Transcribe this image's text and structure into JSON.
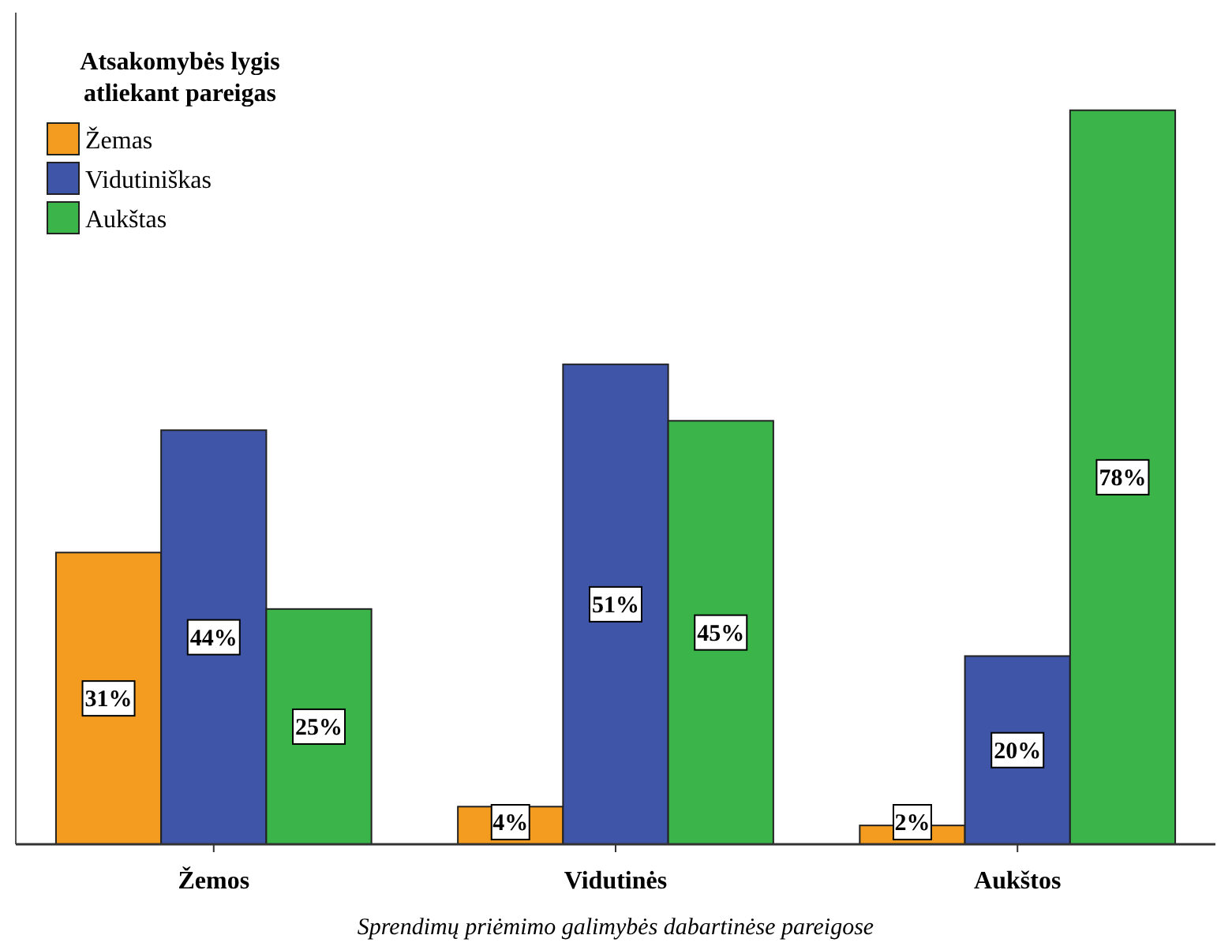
{
  "chart_data": {
    "type": "bar",
    "categories": [
      "Žemos",
      "Vidutinės",
      "Aukštos"
    ],
    "xlabel": "Sprendimų priėmimo galimybės dabartinėse pareigose",
    "legend_title": "Atsakomybės lygis atliekant pareigas",
    "legend": "top left",
    "series": [
      {
        "name": "Žemas",
        "color": "#f39c1f",
        "values": [
          31,
          4,
          2
        ],
        "value_labels": [
          "31%",
          "4%",
          "2%"
        ]
      },
      {
        "name": "Vidutiniškas",
        "color": "#3f56a8",
        "values": [
          44,
          51,
          20
        ],
        "value_labels": [
          "44%",
          "51%",
          "20%"
        ]
      },
      {
        "name": "Aukštas",
        "color": "#3bb44a",
        "values": [
          25,
          45,
          78
        ],
        "value_labels": [
          "25%",
          "45%",
          "78%"
        ]
      }
    ],
    "grid": false
  }
}
